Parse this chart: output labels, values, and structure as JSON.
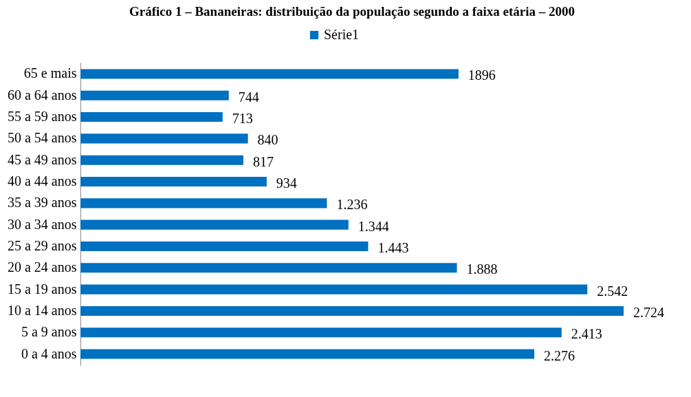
{
  "chart_data": {
    "type": "bar",
    "orientation": "horizontal",
    "title": "Gráfico 1 – Bananeiras: distribuição da população segundo a faixa etária – 2000",
    "categories": [
      "65 e mais",
      "60 a 64 anos",
      "55 a 59 anos",
      "50 a 54 anos",
      "45 a 49 anos",
      "40 a 44 anos",
      "35 a 39 anos",
      "30 a 34 anos",
      "25 a 29 anos",
      "20 a 24 anos",
      "15 a 19 anos",
      "10 a 14 anos",
      "5 a 9 anos",
      "0 a 4 anos"
    ],
    "series": [
      {
        "name": "Série1",
        "color": "#0070c0",
        "values": [
          1896,
          744,
          713,
          840,
          817,
          934,
          1236,
          1344,
          1443,
          1888,
          2542,
          2724,
          2413,
          2276
        ],
        "value_labels": [
          "1896",
          "744",
          "713",
          "840",
          "817",
          "934",
          "1.236",
          "1.344",
          "1.443",
          "1.888",
          "2.542",
          "2.724",
          "2.413",
          "2.276"
        ]
      }
    ],
    "legend": "top"
  }
}
